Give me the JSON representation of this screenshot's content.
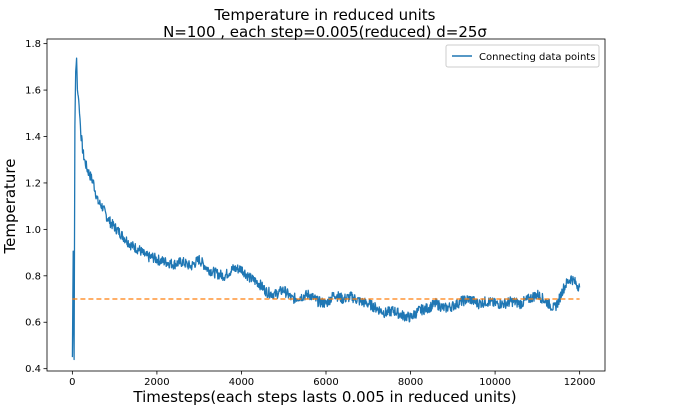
{
  "chart_data": {
    "type": "line",
    "title_line1": "Temperature in reduced units",
    "title_line2": "N=100 , each step=0.005(reduced) d=25σ",
    "xlabel": "Timesteps(each steps lasts 0.005 in reduced units)",
    "ylabel": "Temperature",
    "xlim": [
      -600,
      12600
    ],
    "ylim": [
      0.39,
      1.82
    ],
    "xticks": [
      0,
      2000,
      4000,
      6000,
      8000,
      10000,
      12000
    ],
    "yticks": [
      0.4,
      0.6,
      0.8,
      1.0,
      1.2,
      1.4,
      1.6,
      1.8
    ],
    "ytick_labels": [
      "0.4",
      "0.6",
      "0.8",
      "1.0",
      "1.2",
      "1.4",
      "1.6",
      "1.8"
    ],
    "grid": false,
    "legend_position": "upper-right",
    "series": [
      {
        "name": "Connecting data points",
        "color": "#1f77b4",
        "style": "solid",
        "x": [
          0,
          20,
          40,
          60,
          80,
          100,
          120,
          150,
          200,
          250,
          300,
          350,
          400,
          500,
          600,
          700,
          800,
          900,
          1000,
          1100,
          1200,
          1300,
          1400,
          1500,
          1600,
          1700,
          1800,
          1900,
          2000,
          2200,
          2400,
          2600,
          2800,
          3000,
          3200,
          3400,
          3600,
          3800,
          4000,
          4200,
          4400,
          4600,
          4800,
          5000,
          5200,
          5400,
          5600,
          5800,
          6000,
          6200,
          6400,
          6600,
          6800,
          7000,
          7200,
          7400,
          7600,
          7800,
          8000,
          8200,
          8400,
          8600,
          8800,
          9000,
          9200,
          9400,
          9600,
          9800,
          10000,
          10200,
          10400,
          10600,
          10800,
          11000,
          11200,
          11400,
          11500,
          11600,
          11700,
          11800,
          11900,
          12000
        ],
        "y": [
          0.45,
          0.91,
          0.44,
          1.45,
          1.68,
          1.74,
          1.6,
          1.56,
          1.42,
          1.33,
          1.29,
          1.26,
          1.24,
          1.2,
          1.12,
          1.1,
          1.06,
          1.03,
          1.01,
          0.99,
          0.97,
          0.95,
          0.93,
          0.92,
          0.91,
          0.89,
          0.88,
          0.88,
          0.87,
          0.86,
          0.85,
          0.86,
          0.84,
          0.87,
          0.83,
          0.81,
          0.8,
          0.83,
          0.83,
          0.79,
          0.77,
          0.73,
          0.72,
          0.74,
          0.7,
          0.71,
          0.72,
          0.69,
          0.68,
          0.72,
          0.7,
          0.71,
          0.69,
          0.68,
          0.66,
          0.64,
          0.65,
          0.63,
          0.62,
          0.65,
          0.66,
          0.68,
          0.66,
          0.67,
          0.69,
          0.7,
          0.68,
          0.69,
          0.68,
          0.68,
          0.69,
          0.68,
          0.7,
          0.72,
          0.69,
          0.66,
          0.69,
          0.74,
          0.77,
          0.79,
          0.77,
          0.75
        ]
      },
      {
        "name": "",
        "color": "#ff7f0e",
        "style": "dashed",
        "x": [
          0,
          12000
        ],
        "y": [
          0.7,
          0.7
        ]
      }
    ]
  }
}
